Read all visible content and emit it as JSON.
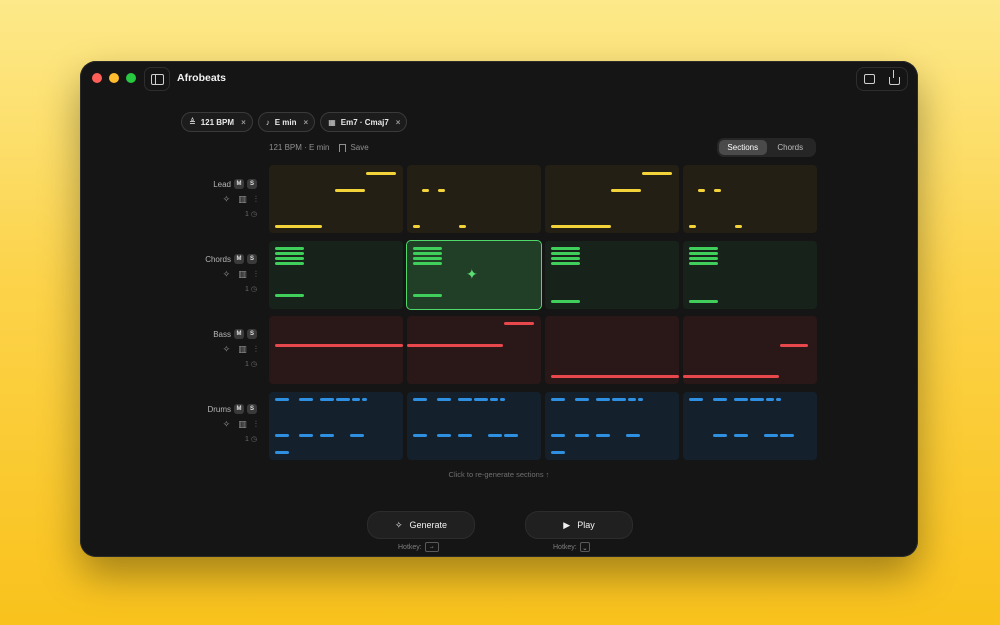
{
  "window": {
    "title": "Afrobeats"
  },
  "chips": [
    {
      "icon": "≜",
      "label": "121 BPM",
      "close": "×"
    },
    {
      "icon": "♪",
      "label": "E min",
      "close": "×"
    },
    {
      "icon": "▦",
      "label": "Em7 · Cmaj7",
      "close": "×"
    }
  ],
  "meta": {
    "summary": "121 BPM · E min",
    "save_label": "Save"
  },
  "view_toggle": {
    "options": [
      "Sections",
      "Chords"
    ],
    "selected": "Sections"
  },
  "tracks": [
    {
      "name": "Lead",
      "mute": "M",
      "solo": "S",
      "count": "1"
    },
    {
      "name": "Chords",
      "mute": "M",
      "solo": "S",
      "count": "1"
    },
    {
      "name": "Bass",
      "mute": "M",
      "solo": "S",
      "count": "1"
    },
    {
      "name": "Drums",
      "mute": "M",
      "solo": "S",
      "count": "1"
    }
  ],
  "icons": {
    "generate": "sparkle-icon",
    "keys": "piano-icon",
    "wave": "waveform-icon",
    "history": "history-icon"
  },
  "colors": {
    "lead": "#f2d33a",
    "chords": "#3fcf5a",
    "bass": "#e8474c",
    "drums": "#2f8fe0"
  },
  "hint": "Click to re-generate sections ↑",
  "actions": {
    "generate_label": "Generate",
    "play_label": "Play",
    "generate_hotkey_label": "Hotkey:",
    "generate_hotkey_key": "→",
    "play_hotkey_label": "Hotkey:",
    "play_hotkey_key": "⎵"
  }
}
